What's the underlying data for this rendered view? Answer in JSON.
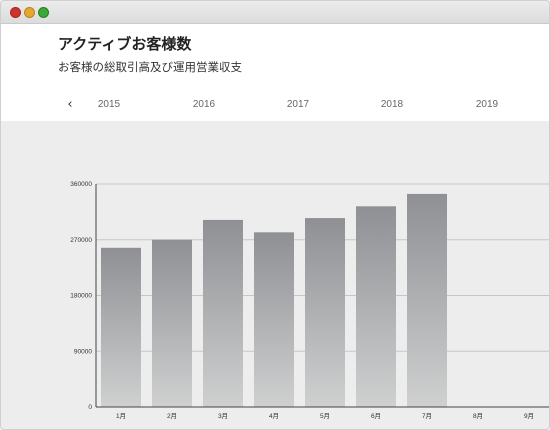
{
  "header": {
    "title": "アクティブお客様数",
    "subtitle": "お客様の総取引高及び運用営業収支"
  },
  "year_nav": {
    "prev_icon": "chevron-left-icon",
    "years": [
      "2015",
      "2016",
      "2017",
      "2018",
      "2019"
    ]
  },
  "chart_data": {
    "type": "bar",
    "categories": [
      "1月",
      "2月",
      "3月",
      "4月",
      "5月",
      "6月",
      "7月",
      "8月",
      "9月"
    ],
    "values": [
      257000,
      270000,
      302000,
      282000,
      305000,
      324000,
      344000,
      null,
      null
    ],
    "ylim": [
      0,
      360000
    ],
    "yticks": [
      0,
      90000,
      180000,
      270000,
      360000
    ],
    "grid": true,
    "colors": {
      "bar_top": "#8e9094",
      "bar_bottom": "#cfd0d0",
      "grid": "#c6c6c6",
      "axis": "#444444"
    }
  }
}
